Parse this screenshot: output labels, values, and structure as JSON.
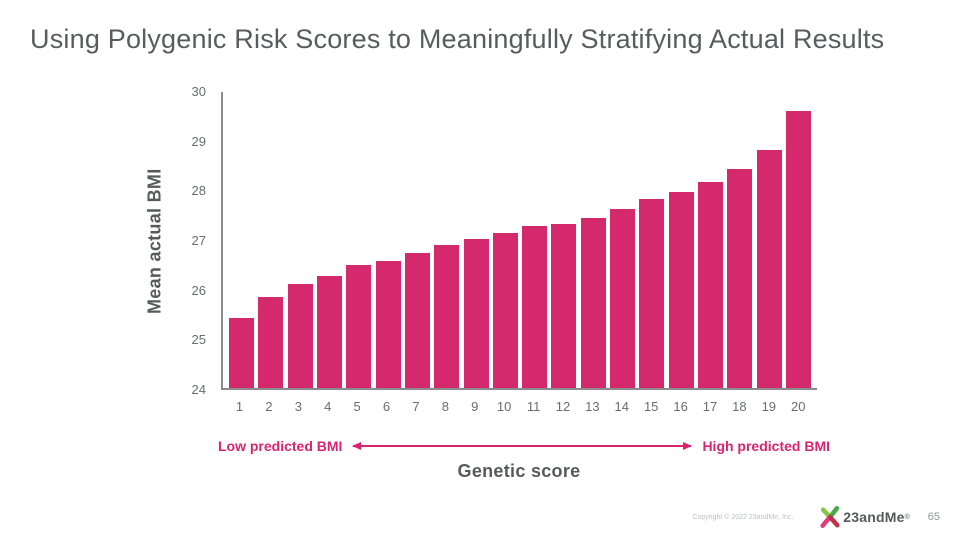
{
  "slide": {
    "title": "Using Polygenic Risk Scores to Meaningfully Stratifying Actual Results",
    "footer": {
      "copyright": "Copyright © 2022 23andMe, Inc.",
      "logo_text": "23andMe",
      "registered_mark": "®",
      "page_number": "65"
    }
  },
  "colors": {
    "accent": "#D8246E",
    "bar": "#D5296D",
    "title_text": "#595B5E",
    "axis_line": "#8A8C8F",
    "tick_text": "#6A6C6F",
    "axis_label_text": "#58595B",
    "footer_text": "#BDBFC1",
    "page_number_text": "#939598",
    "wordmark_text": "#56585B",
    "logo_green_light": "#8BC540",
    "logo_green": "#4BA94D",
    "logo_pink": "#E13D7D",
    "logo_red": "#BE3148"
  },
  "chart_data": {
    "type": "bar",
    "title": "",
    "xlabel": "Genetic score",
    "ylabel": "Mean actual BMI",
    "categories": [
      "1",
      "2",
      "3",
      "4",
      "5",
      "6",
      "7",
      "8",
      "9",
      "10",
      "11",
      "12",
      "13",
      "14",
      "15",
      "16",
      "17",
      "18",
      "19",
      "20"
    ],
    "values": [
      25.42,
      25.83,
      26.1,
      26.26,
      26.47,
      26.56,
      26.71,
      26.88,
      27.01,
      27.13,
      27.26,
      27.31,
      27.43,
      27.61,
      27.8,
      27.95,
      28.14,
      28.42,
      28.79,
      29.57
    ],
    "ylim": [
      24,
      30
    ],
    "yticks": [
      24,
      25,
      26,
      27,
      28,
      29,
      30
    ],
    "grid": false,
    "legend_position": "none",
    "bar_color": "#D5296D",
    "annotations": {
      "left_label": "Low predicted BMI",
      "right_label": "High predicted BMI",
      "arrow": "double-headed"
    }
  }
}
